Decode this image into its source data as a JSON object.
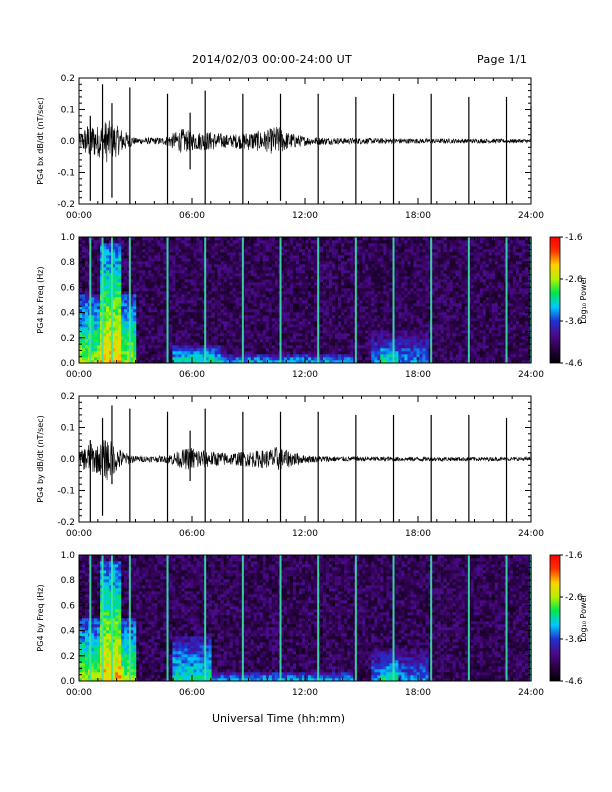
{
  "header": {
    "title": "2014/02/03  00:00-24:00 UT",
    "page": "Page 1/1"
  },
  "x_axis_title": "Universal Time (hh:mm)",
  "colors": {
    "trace": "#000000",
    "background": "#ffffff",
    "colorbar_stops": [
      "#000000",
      "#2a0044",
      "#4b0a8c",
      "#1f32d2",
      "#00c8ff",
      "#00e650",
      "#b4f000",
      "#ffd200",
      "#ff3200",
      "#ff0000"
    ]
  },
  "chart_data": [
    {
      "type": "line",
      "panel": "bx-timeseries",
      "ylabel": "PG4 bx dB/dt (nT/sec)",
      "ylim": [
        -0.2,
        0.2
      ],
      "yticks": [
        "0.2",
        "0.1",
        "0.0",
        "-0.1",
        "-0.2"
      ],
      "ytick_values": [
        0.2,
        0.1,
        0.0,
        -0.1,
        -0.2
      ],
      "xlim": [
        0,
        24
      ],
      "xticks": [
        "00:00",
        "06:00",
        "12:00",
        "18:00",
        "24:00"
      ],
      "xtick_values": [
        0,
        6,
        12,
        18,
        24
      ],
      "spikes": [
        {
          "x": 0.6,
          "top": 0.08,
          "bottom": -0.19
        },
        {
          "x": 1.25,
          "top": 0.18,
          "bottom": -0.2
        },
        {
          "x": 1.75,
          "top": 0.12,
          "bottom": -0.18
        },
        {
          "x": 2.7,
          "top": 0.17,
          "bottom": -0.2
        },
        {
          "x": 4.7,
          "top": 0.15,
          "bottom": -0.2
        },
        {
          "x": 5.9,
          "top": 0.09,
          "bottom": -0.09
        },
        {
          "x": 6.7,
          "top": 0.16,
          "bottom": -0.2
        },
        {
          "x": 8.7,
          "top": 0.15,
          "bottom": -0.2
        },
        {
          "x": 10.7,
          "top": 0.15,
          "bottom": -0.19
        },
        {
          "x": 12.7,
          "top": 0.15,
          "bottom": -0.2
        },
        {
          "x": 14.7,
          "top": 0.14,
          "bottom": -0.2
        },
        {
          "x": 16.7,
          "top": 0.15,
          "bottom": -0.2
        },
        {
          "x": 18.7,
          "top": 0.15,
          "bottom": -0.2
        },
        {
          "x": 20.7,
          "top": 0.14,
          "bottom": -0.2
        },
        {
          "x": 22.7,
          "top": 0.14,
          "bottom": -0.2
        },
        {
          "x": 24.0,
          "top": 0.11,
          "bottom": -0.02
        }
      ],
      "noise_envelope": [
        {
          "x": 0,
          "amp": 0.02
        },
        {
          "x": 0.5,
          "amp": 0.06
        },
        {
          "x": 1.0,
          "amp": 0.05
        },
        {
          "x": 1.5,
          "amp": 0.07
        },
        {
          "x": 2.0,
          "amp": 0.05
        },
        {
          "x": 2.5,
          "amp": 0.03
        },
        {
          "x": 3.0,
          "amp": 0.01
        },
        {
          "x": 4.5,
          "amp": 0.012
        },
        {
          "x": 5.5,
          "amp": 0.04
        },
        {
          "x": 6.0,
          "amp": 0.03
        },
        {
          "x": 7.0,
          "amp": 0.03
        },
        {
          "x": 8.0,
          "amp": 0.02
        },
        {
          "x": 9.0,
          "amp": 0.03
        },
        {
          "x": 10.0,
          "amp": 0.035
        },
        {
          "x": 10.5,
          "amp": 0.05
        },
        {
          "x": 11.0,
          "amp": 0.03
        },
        {
          "x": 12.0,
          "amp": 0.015
        },
        {
          "x": 13.0,
          "amp": 0.012
        },
        {
          "x": 14.0,
          "amp": 0.01
        },
        {
          "x": 18.0,
          "amp": 0.008
        },
        {
          "x": 24.0,
          "amp": 0.006
        }
      ]
    },
    {
      "type": "heatmap",
      "panel": "bx-spectrogram",
      "ylabel": "PG4 bx Freq (Hz)",
      "ylim": [
        0.0,
        1.0
      ],
      "yticks": [
        "1.0",
        "0.8",
        "0.6",
        "0.4",
        "0.2",
        "0.0"
      ],
      "ytick_values": [
        1.0,
        0.8,
        0.6,
        0.4,
        0.2,
        0.0
      ],
      "xlim": [
        0,
        24
      ],
      "xticks": [
        "00:00",
        "06:00",
        "12:00",
        "18:00",
        "24:00"
      ],
      "xtick_values": [
        0,
        6,
        12,
        18,
        24
      ],
      "colorbar": {
        "label": "Log₁₀ Power",
        "range": [
          -4.6,
          -1.6
        ],
        "ticks": [
          "-1.6",
          "-2.6",
          "-3.6",
          "-4.6"
        ],
        "tick_values": [
          -1.6,
          -2.6,
          -3.6,
          -4.6
        ]
      },
      "vertical_lines_x": [
        0.6,
        1.25,
        1.75,
        2.7,
        4.7,
        6.7,
        8.7,
        10.7,
        12.7,
        14.7,
        16.7,
        18.7,
        20.7,
        22.7,
        24.0
      ],
      "enhancements": [
        {
          "x0": 0.0,
          "x1": 3.0,
          "fmax": 0.55,
          "level": -2.6
        },
        {
          "x0": 1.2,
          "x1": 2.2,
          "fmax": 0.95,
          "level": -2.2
        },
        {
          "x0": 5.0,
          "x1": 7.5,
          "fmax": 0.15,
          "level": -3.0
        },
        {
          "x0": 7.5,
          "x1": 14.5,
          "fmax": 0.08,
          "level": -3.2
        },
        {
          "x0": 15.5,
          "x1": 18.5,
          "fmax": 0.25,
          "level": -3.4
        },
        {
          "x0": 16.0,
          "x1": 17.0,
          "fmax": 0.2,
          "level": -3.0
        }
      ]
    },
    {
      "type": "line",
      "panel": "by-timeseries",
      "ylabel": "PG4 by dB/dt (nT/sec)",
      "ylim": [
        -0.2,
        0.2
      ],
      "yticks": [
        "0.2",
        "0.1",
        "0.0",
        "-0.1",
        "-0.2"
      ],
      "ytick_values": [
        0.2,
        0.1,
        0.0,
        -0.1,
        -0.2
      ],
      "xlim": [
        0,
        24
      ],
      "xticks": [
        "00:00",
        "06:00",
        "12:00",
        "18:00",
        "24:00"
      ],
      "xtick_values": [
        0,
        6,
        12,
        18,
        24
      ],
      "spikes": [
        {
          "x": 0.6,
          "top": 0.06,
          "bottom": -0.2
        },
        {
          "x": 1.25,
          "top": 0.13,
          "bottom": -0.18
        },
        {
          "x": 1.75,
          "top": 0.17,
          "bottom": -0.08
        },
        {
          "x": 2.7,
          "top": 0.16,
          "bottom": -0.2
        },
        {
          "x": 4.7,
          "top": 0.15,
          "bottom": -0.2
        },
        {
          "x": 5.9,
          "top": 0.09,
          "bottom": -0.07
        },
        {
          "x": 6.7,
          "top": 0.16,
          "bottom": -0.2
        },
        {
          "x": 8.7,
          "top": 0.15,
          "bottom": -0.2
        },
        {
          "x": 10.7,
          "top": 0.15,
          "bottom": -0.2
        },
        {
          "x": 12.7,
          "top": 0.15,
          "bottom": -0.2
        },
        {
          "x": 14.7,
          "top": 0.14,
          "bottom": -0.2
        },
        {
          "x": 16.7,
          "top": 0.14,
          "bottom": -0.2
        },
        {
          "x": 18.7,
          "top": 0.14,
          "bottom": -0.2
        },
        {
          "x": 20.7,
          "top": 0.14,
          "bottom": -0.2
        },
        {
          "x": 22.7,
          "top": 0.13,
          "bottom": -0.2
        },
        {
          "x": 24.0,
          "top": 0.02,
          "bottom": -0.02
        }
      ],
      "noise_envelope": [
        {
          "x": 0,
          "amp": 0.02
        },
        {
          "x": 0.5,
          "amp": 0.05
        },
        {
          "x": 1.0,
          "amp": 0.045
        },
        {
          "x": 1.5,
          "amp": 0.07
        },
        {
          "x": 2.0,
          "amp": 0.04
        },
        {
          "x": 2.5,
          "amp": 0.02
        },
        {
          "x": 3.0,
          "amp": 0.01
        },
        {
          "x": 4.5,
          "amp": 0.01
        },
        {
          "x": 5.5,
          "amp": 0.03
        },
        {
          "x": 6.0,
          "amp": 0.04
        },
        {
          "x": 7.0,
          "amp": 0.025
        },
        {
          "x": 8.0,
          "amp": 0.02
        },
        {
          "x": 9.0,
          "amp": 0.025
        },
        {
          "x": 10.0,
          "amp": 0.03
        },
        {
          "x": 10.5,
          "amp": 0.04
        },
        {
          "x": 11.0,
          "amp": 0.03
        },
        {
          "x": 12.0,
          "amp": 0.012
        },
        {
          "x": 13.0,
          "amp": 0.01
        },
        {
          "x": 14.0,
          "amp": 0.008
        },
        {
          "x": 18.0,
          "amp": 0.007
        },
        {
          "x": 24.0,
          "amp": 0.006
        }
      ]
    },
    {
      "type": "heatmap",
      "panel": "by-spectrogram",
      "ylabel": "PG4 by Freq (Hz)",
      "ylim": [
        0.0,
        1.0
      ],
      "yticks": [
        "1.0",
        "0.8",
        "0.6",
        "0.4",
        "0.2",
        "0.0"
      ],
      "ytick_values": [
        1.0,
        0.8,
        0.6,
        0.4,
        0.2,
        0.0
      ],
      "xlim": [
        0,
        24
      ],
      "xticks": [
        "00:00",
        "06:00",
        "12:00",
        "18:00",
        "24:00"
      ],
      "xtick_values": [
        0,
        6,
        12,
        18,
        24
      ],
      "colorbar": {
        "label": "Log₁₀ Power",
        "range": [
          -4.6,
          -1.6
        ],
        "ticks": [
          "-1.6",
          "-2.6",
          "-3.6",
          "-4.6"
        ],
        "tick_values": [
          -1.6,
          -2.6,
          -3.6,
          -4.6
        ]
      },
      "vertical_lines_x": [
        0.6,
        1.25,
        1.75,
        2.7,
        4.7,
        6.7,
        8.7,
        10.7,
        12.7,
        14.7,
        16.7,
        18.7,
        20.7,
        22.7,
        24.0
      ],
      "enhancements": [
        {
          "x0": 0.0,
          "x1": 3.0,
          "fmax": 0.5,
          "level": -2.6
        },
        {
          "x0": 1.2,
          "x1": 2.2,
          "fmax": 0.95,
          "level": -2.2
        },
        {
          "x0": 5.0,
          "x1": 7.0,
          "fmax": 0.35,
          "level": -3.0
        },
        {
          "x0": 7.0,
          "x1": 14.5,
          "fmax": 0.08,
          "level": -3.2
        },
        {
          "x0": 15.5,
          "x1": 18.5,
          "fmax": 0.25,
          "level": -3.4
        },
        {
          "x0": 16.0,
          "x1": 17.0,
          "fmax": 0.22,
          "level": -3.0
        }
      ]
    }
  ]
}
